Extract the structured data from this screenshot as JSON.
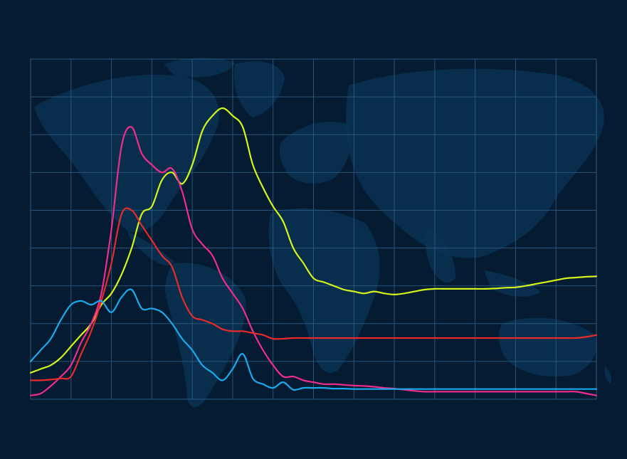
{
  "chart_data": {
    "type": "line",
    "title": "",
    "xlabel": "",
    "ylabel": "",
    "x": [
      0,
      1,
      2,
      3,
      4,
      5,
      6,
      7,
      8,
      9,
      10,
      11,
      12,
      13,
      14,
      15,
      16,
      17,
      18,
      19,
      20,
      21,
      22,
      23,
      24,
      25,
      26,
      27,
      28,
      29,
      30,
      31,
      32,
      33,
      34,
      35,
      36,
      37,
      38,
      39,
      40,
      41,
      42,
      43,
      44,
      45,
      46,
      47,
      48,
      49,
      50,
      51,
      52,
      53,
      54,
      55,
      56
    ],
    "xlim": [
      0,
      56
    ],
    "ylim": [
      0,
      9
    ],
    "grid": true,
    "background_map": "world-map",
    "series": [
      {
        "color": "#d4f51c",
        "values": [
          0.7,
          0.8,
          0.9,
          1.1,
          1.4,
          1.7,
          2.0,
          2.5,
          2.8,
          3.3,
          4.0,
          4.9,
          5.1,
          5.8,
          6.0,
          5.7,
          6.2,
          7.1,
          7.5,
          7.7,
          7.5,
          7.2,
          6.2,
          5.6,
          5.1,
          4.7,
          4.0,
          3.6,
          3.2,
          3.1,
          3.0,
          2.9,
          2.85,
          2.8,
          2.85,
          2.8,
          2.77,
          2.8,
          2.85,
          2.9,
          2.92,
          2.92,
          2.92,
          2.92,
          2.92,
          2.92,
          2.93,
          2.95,
          2.96,
          3.0,
          3.05,
          3.1,
          3.15,
          3.2,
          3.22,
          3.24,
          3.25
        ]
      },
      {
        "color": "#ef2d8c",
        "values": [
          0.1,
          0.15,
          0.35,
          0.6,
          0.9,
          1.5,
          2.0,
          2.8,
          4.5,
          6.7,
          7.2,
          6.5,
          6.2,
          6.0,
          6.1,
          5.5,
          4.5,
          4.1,
          3.8,
          3.2,
          2.8,
          2.4,
          1.8,
          1.3,
          0.9,
          0.6,
          0.6,
          0.5,
          0.45,
          0.4,
          0.4,
          0.38,
          0.36,
          0.35,
          0.33,
          0.3,
          0.28,
          0.25,
          0.22,
          0.2,
          0.2,
          0.2,
          0.2,
          0.2,
          0.2,
          0.2,
          0.2,
          0.2,
          0.2,
          0.2,
          0.2,
          0.2,
          0.2,
          0.2,
          0.2,
          0.15,
          0.1
        ]
      },
      {
        "color": "#e72b2b",
        "values": [
          0.5,
          0.5,
          0.52,
          0.55,
          0.6,
          1.2,
          1.8,
          2.6,
          3.6,
          4.9,
          5.0,
          4.6,
          4.2,
          3.8,
          3.5,
          2.7,
          2.2,
          2.1,
          2.0,
          1.85,
          1.8,
          1.8,
          1.75,
          1.7,
          1.6,
          1.6,
          1.62,
          1.62,
          1.62,
          1.62,
          1.62,
          1.62,
          1.62,
          1.62,
          1.62,
          1.62,
          1.62,
          1.62,
          1.62,
          1.62,
          1.62,
          1.62,
          1.62,
          1.62,
          1.62,
          1.62,
          1.62,
          1.62,
          1.62,
          1.62,
          1.62,
          1.62,
          1.62,
          1.62,
          1.62,
          1.65,
          1.7
        ]
      },
      {
        "color": "#1aa9ec",
        "values": [
          1.0,
          1.3,
          1.6,
          2.1,
          2.5,
          2.6,
          2.5,
          2.6,
          2.3,
          2.7,
          2.9,
          2.4,
          2.4,
          2.3,
          2.0,
          1.6,
          1.3,
          0.9,
          0.7,
          0.5,
          0.8,
          1.2,
          0.55,
          0.4,
          0.3,
          0.45,
          0.25,
          0.3,
          0.3,
          0.3,
          0.28,
          0.28,
          0.27,
          0.27,
          0.27,
          0.27,
          0.27,
          0.27,
          0.27,
          0.27,
          0.27,
          0.27,
          0.27,
          0.27,
          0.27,
          0.27,
          0.27,
          0.27,
          0.27,
          0.27,
          0.27,
          0.27,
          0.27,
          0.27,
          0.27,
          0.27,
          0.27
        ]
      }
    ]
  }
}
